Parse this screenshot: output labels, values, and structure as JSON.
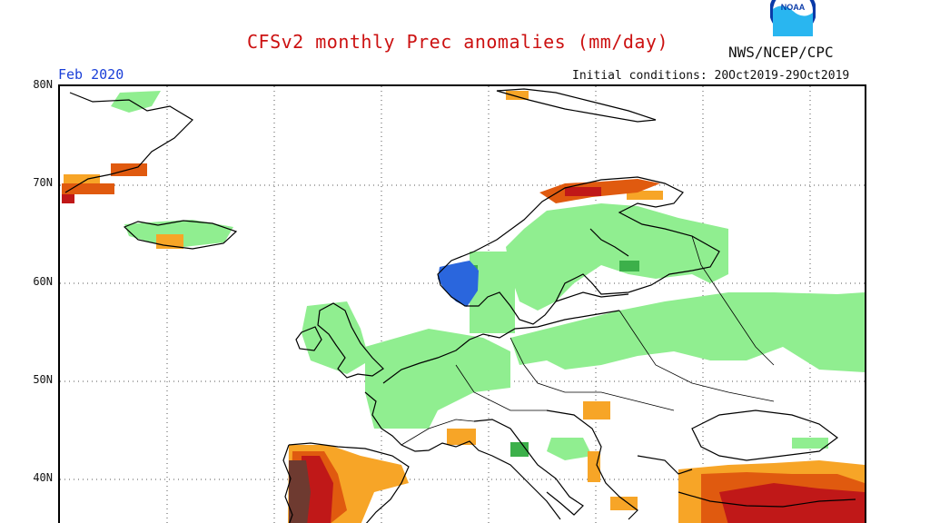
{
  "header": {
    "title": "CFSv2 monthly Prec anomalies (mm/day)",
    "agency": "NWS/NCEP/CPC",
    "logo_text": "NOAA",
    "period": "Feb 2020",
    "initial_conditions": "Initial conditions: 20Oct2019-29Oct2019"
  },
  "axes": {
    "latitude_labels": [
      "80N",
      "70N",
      "60N",
      "50N",
      "40N"
    ]
  },
  "legend_colors": {
    "wet_light": "#90ee90",
    "wet_medium": "#3cb04a",
    "wet_strong": "#2a66dd",
    "dry_light": "#f7a527",
    "dry_medium": "#e05a0f",
    "dry_strong": "#c01818",
    "dry_extreme": "#6e3a30"
  },
  "anomaly_regions": [
    {
      "region": "Scandinavia / Finland",
      "class": "wet_light"
    },
    {
      "region": "Western Norway coast",
      "class": "wet_strong"
    },
    {
      "region": "British Isles",
      "class": "wet_light"
    },
    {
      "region": "France / Benelux / Germany",
      "class": "wet_light"
    },
    {
      "region": "Eastern Europe / Russia",
      "class": "wet_light"
    },
    {
      "region": "Northern Norway coast",
      "class": "dry_medium"
    },
    {
      "region": "Iberian Peninsula",
      "class": "dry_extreme"
    },
    {
      "region": "Turkey / Eastern Mediterranean",
      "class": "dry_strong"
    },
    {
      "region": "Balkans",
      "class": "dry_light"
    },
    {
      "region": "Iceland / Greenland coast",
      "class": "dry_light"
    }
  ]
}
